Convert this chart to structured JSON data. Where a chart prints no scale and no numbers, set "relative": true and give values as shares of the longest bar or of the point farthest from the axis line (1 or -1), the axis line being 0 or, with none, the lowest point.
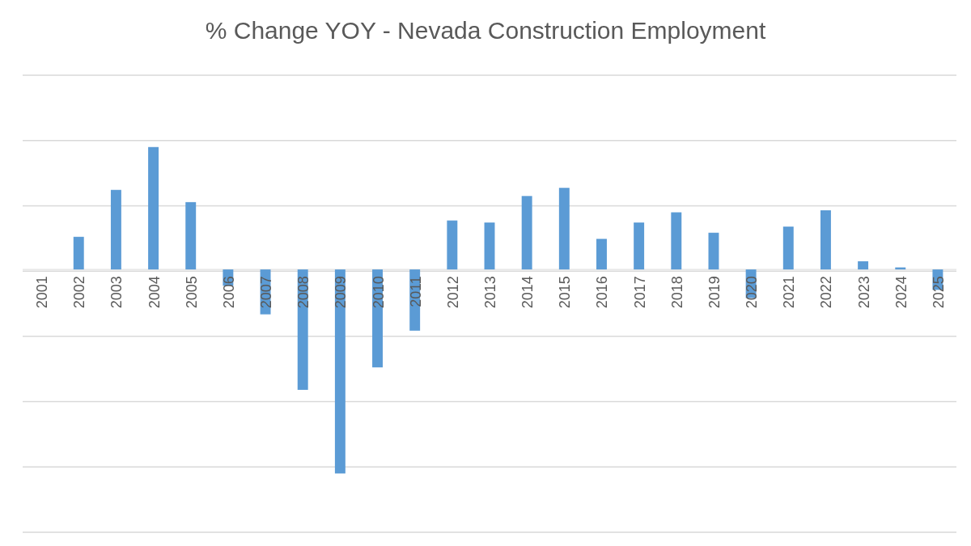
{
  "chart_data": {
    "type": "bar",
    "title": "% Change YOY - Nevada Construction Employment",
    "relative": true,
    "grid": true,
    "color": "#5b9bd5",
    "categories": [
      "2001",
      "2002",
      "2003",
      "2004",
      "2005",
      "2006",
      "2007",
      "2008",
      "2009",
      "2010",
      "2011",
      "2012",
      "2013",
      "2014",
      "2015",
      "2016",
      "2017",
      "2018",
      "2019",
      "2020",
      "2021",
      "2022",
      "2023",
      "2024",
      "2025"
    ],
    "values": [
      0,
      0.16,
      0.39,
      0.6,
      0.33,
      -0.08,
      -0.22,
      -0.59,
      -1,
      -0.48,
      -0.3,
      0.24,
      0.23,
      0.36,
      0.4,
      0.15,
      0.23,
      0.28,
      0.18,
      -0.14,
      0.21,
      0.29,
      0.04,
      0.01,
      -0.1
    ]
  }
}
